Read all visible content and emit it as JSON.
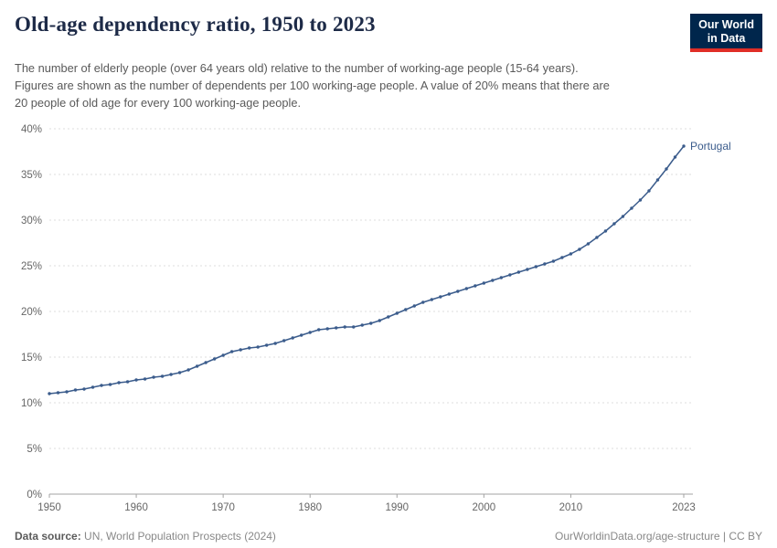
{
  "header": {
    "title": "Old-age dependency ratio, 1950 to 2023",
    "subtitle": "The number of elderly people (over 64 years old) relative to the number of working-age people (15-64 years). Figures are shown as the number of dependents per 100 working-age people. A value of 20% means that there are 20 people of old age for every 100 working-age people.",
    "logo": {
      "line1": "Our World",
      "line2": "in Data"
    }
  },
  "colors": {
    "line": "#3b5c8c",
    "series_label": "#3b5c8c",
    "logo_bg": "#00264c",
    "logo_accent": "#e02e27",
    "gridline": "#dddddd",
    "axis": "#a3a3a3",
    "tick_label": "#666666",
    "title": "#1d2a47"
  },
  "chart_data": {
    "type": "line",
    "title": "Old-age dependency ratio, 1950 to 2023",
    "xlabel": "",
    "ylabel": "",
    "xlim": [
      1950,
      2023
    ],
    "ylim": [
      0,
      40
    ],
    "yticks": [
      0,
      5,
      10,
      15,
      20,
      25,
      30,
      35,
      40
    ],
    "ytick_suffix": "%",
    "xticks": [
      1950,
      1960,
      1970,
      1980,
      1990,
      2000,
      2010,
      2023
    ],
    "grid": true,
    "legend_position": "end-of-line",
    "years": [
      1950,
      1951,
      1952,
      1953,
      1954,
      1955,
      1956,
      1957,
      1958,
      1959,
      1960,
      1961,
      1962,
      1963,
      1964,
      1965,
      1966,
      1967,
      1968,
      1969,
      1970,
      1971,
      1972,
      1973,
      1974,
      1975,
      1976,
      1977,
      1978,
      1979,
      1980,
      1981,
      1982,
      1983,
      1984,
      1985,
      1986,
      1987,
      1988,
      1989,
      1990,
      1991,
      1992,
      1993,
      1994,
      1995,
      1996,
      1997,
      1998,
      1999,
      2000,
      2001,
      2002,
      2003,
      2004,
      2005,
      2006,
      2007,
      2008,
      2009,
      2010,
      2011,
      2012,
      2013,
      2014,
      2015,
      2016,
      2017,
      2018,
      2019,
      2020,
      2021,
      2022,
      2023
    ],
    "series": [
      {
        "name": "Portugal",
        "color": "#3b5c8c",
        "values": [
          11.0,
          11.1,
          11.2,
          11.4,
          11.5,
          11.7,
          11.9,
          12.0,
          12.2,
          12.3,
          12.5,
          12.6,
          12.8,
          12.9,
          13.1,
          13.3,
          13.6,
          14.0,
          14.4,
          14.8,
          15.2,
          15.6,
          15.8,
          16.0,
          16.1,
          16.3,
          16.5,
          16.8,
          17.1,
          17.4,
          17.7,
          18.0,
          18.1,
          18.2,
          18.3,
          18.3,
          18.5,
          18.7,
          19.0,
          19.4,
          19.8,
          20.2,
          20.6,
          21.0,
          21.3,
          21.6,
          21.9,
          22.2,
          22.5,
          22.8,
          23.1,
          23.4,
          23.7,
          24.0,
          24.3,
          24.6,
          24.9,
          25.2,
          25.5,
          25.9,
          26.3,
          26.8,
          27.4,
          28.1,
          28.8,
          29.6,
          30.4,
          31.3,
          32.2,
          33.2,
          34.4,
          35.6,
          36.9,
          38.1
        ]
      }
    ]
  },
  "footer": {
    "source_label": "Data source:",
    "source_text": "UN, World Population Prospects (2024)",
    "right_text": "OurWorldinData.org/age-structure | CC BY"
  }
}
